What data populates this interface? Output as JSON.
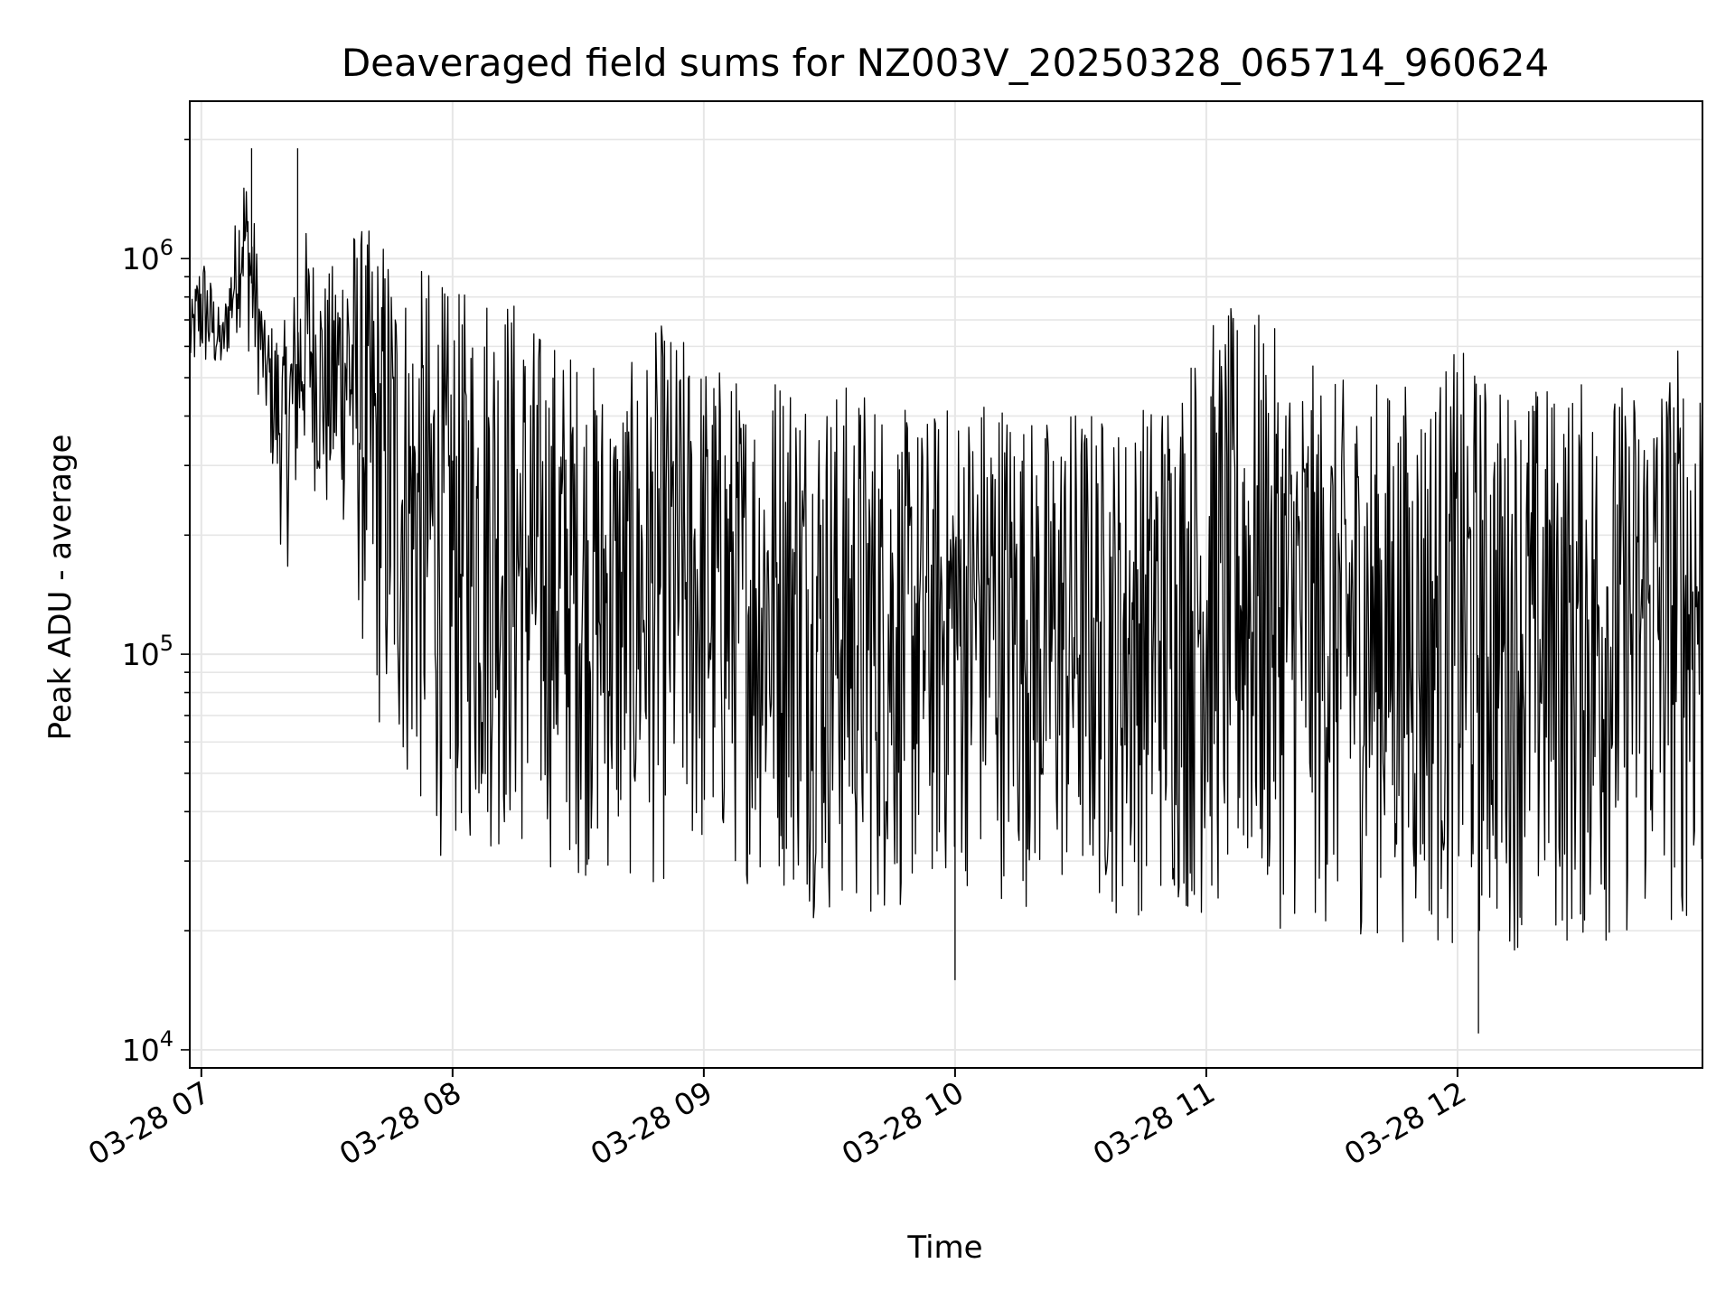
{
  "chart_data": {
    "type": "line",
    "title": "Deaveraged field sums for NZ003V_20250328_065714_960624",
    "xlabel": "Time",
    "ylabel": "Peak ADU - average",
    "y_scale": "log",
    "ylim": [
      9000,
      2500000
    ],
    "xlim": [
      "2025-03-28 06:57:14",
      "2025-03-28 12:58:30"
    ],
    "grid": true,
    "line_color": "#000000",
    "x_ticks": [
      {
        "value": "2025-03-28 07:00",
        "label": "03-28 07"
      },
      {
        "value": "2025-03-28 08:00",
        "label": "03-28 08"
      },
      {
        "value": "2025-03-28 09:00",
        "label": "03-28 09"
      },
      {
        "value": "2025-03-28 10:00",
        "label": "03-28 10"
      },
      {
        "value": "2025-03-28 11:00",
        "label": "03-28 11"
      },
      {
        "value": "2025-03-28 12:00",
        "label": "03-28 12"
      }
    ],
    "y_ticks": [
      {
        "value": 10000,
        "base": "10",
        "exp": "4"
      },
      {
        "value": 100000,
        "base": "10",
        "exp": "5"
      },
      {
        "value": 1000000,
        "base": "10",
        "exp": "6"
      }
    ],
    "series": [
      {
        "x": [
          "2025-03-28 06:57",
          "2025-03-28 07:00",
          "2025-03-28 07:05",
          "2025-03-28 07:10",
          "2025-03-28 07:12",
          "2025-03-28 07:15",
          "2025-03-28 07:20",
          "2025-03-28 07:25",
          "2025-03-28 07:30",
          "2025-03-28 07:35",
          "2025-03-28 07:40",
          "2025-03-28 07:45",
          "2025-03-28 07:50",
          "2025-03-28 07:55",
          "2025-03-28 08:00",
          "2025-03-28 08:10",
          "2025-03-28 08:20",
          "2025-03-28 08:30",
          "2025-03-28 08:40",
          "2025-03-28 08:50",
          "2025-03-28 09:00",
          "2025-03-28 09:10",
          "2025-03-28 09:20",
          "2025-03-28 09:30",
          "2025-03-28 09:40",
          "2025-03-28 09:50",
          "2025-03-28 10:00",
          "2025-03-28 10:10",
          "2025-03-28 10:20",
          "2025-03-28 10:30",
          "2025-03-28 10:40",
          "2025-03-28 10:50",
          "2025-03-28 11:00",
          "2025-03-28 11:10",
          "2025-03-28 11:20",
          "2025-03-28 11:30",
          "2025-03-28 11:40",
          "2025-03-28 11:50",
          "2025-03-28 12:00",
          "2025-03-28 12:10",
          "2025-03-28 12:20",
          "2025-03-28 12:30",
          "2025-03-28 12:40",
          "2025-03-28 12:50",
          "2025-03-28 12:58"
        ],
        "upper": [
          700000,
          1100000,
          700000,
          1800000,
          1500000,
          700000,
          700000,
          1200000,
          900000,
          1300000,
          1200000,
          1200000,
          900000,
          1000000,
          800000,
          1000000,
          700000,
          600000,
          500000,
          700000,
          600000,
          500000,
          600000,
          500000,
          500000,
          400000,
          450000,
          500000,
          400000,
          450000,
          400000,
          500000,
          700000,
          800000,
          600000,
          500000,
          500000,
          500000,
          600000,
          500000,
          500000,
          500000,
          500000,
          600000,
          700000
        ],
        "lower": [
          500000,
          500000,
          500000,
          700000,
          500000,
          400000,
          150000,
          300000,
          200000,
          200000,
          70000,
          50000,
          40000,
          30000,
          30000,
          30000,
          28000,
          27000,
          25000,
          25000,
          27000,
          26000,
          24000,
          20000,
          20000,
          22000,
          25000,
          24000,
          22000,
          22000,
          21000,
          22000,
          20000,
          20000,
          20000,
          19000,
          19000,
          18000,
          17000,
          18000,
          17000,
          17000,
          18000,
          19000,
          20000
        ],
        "spikes_max": [
          {
            "x": "2025-03-28 07:12",
            "y": 1900000
          },
          {
            "x": "2025-03-28 07:23",
            "y": 1900000
          }
        ],
        "spikes_min": [
          {
            "x": "2025-03-28 12:05",
            "y": 11000
          },
          {
            "x": "2025-03-28 10:00",
            "y": 15000
          }
        ]
      }
    ]
  }
}
